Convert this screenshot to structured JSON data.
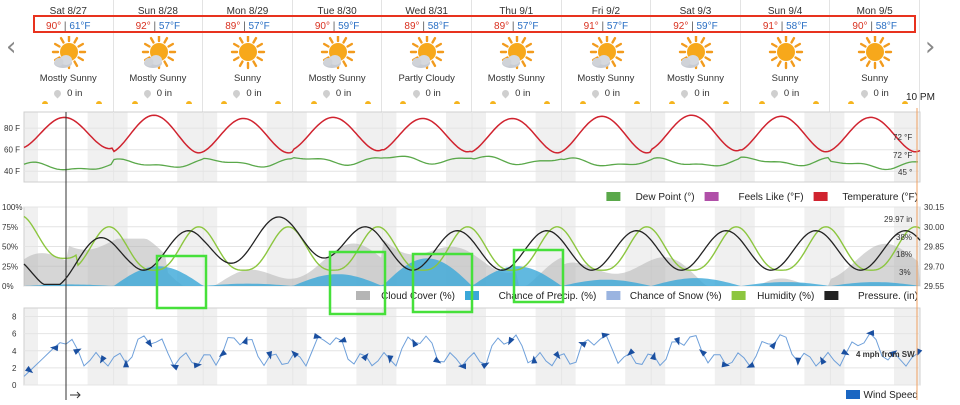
{
  "nav": {
    "prev_label": "‹",
    "next_label": "›"
  },
  "days": [
    {
      "date": "Sat 8/27",
      "hi": "90°",
      "lo": "61°F",
      "condition": "Mostly Sunny",
      "icon": "mostly-sunny-icon",
      "precip": "0 in"
    },
    {
      "date": "Sun 8/28",
      "hi": "92°",
      "lo": "57°F",
      "condition": "Mostly Sunny",
      "icon": "mostly-sunny-icon",
      "precip": "0 in"
    },
    {
      "date": "Mon 8/29",
      "hi": "89°",
      "lo": "57°F",
      "condition": "Sunny",
      "icon": "sunny-icon",
      "precip": "0 in"
    },
    {
      "date": "Tue 8/30",
      "hi": "90°",
      "lo": "59°F",
      "condition": "Mostly Sunny",
      "icon": "mostly-sunny-icon",
      "precip": "0 in"
    },
    {
      "date": "Wed 8/31",
      "hi": "89°",
      "lo": "58°F",
      "condition": "Partly Cloudy",
      "icon": "partly-cloudy-icon",
      "precip": "0 in"
    },
    {
      "date": "Thu 9/1",
      "hi": "89°",
      "lo": "57°F",
      "condition": "Mostly Sunny",
      "icon": "mostly-sunny-icon",
      "precip": "0 in"
    },
    {
      "date": "Fri 9/2",
      "hi": "91°",
      "lo": "57°F",
      "condition": "Mostly Sunny",
      "icon": "mostly-sunny-icon",
      "precip": "0 in"
    },
    {
      "date": "Sat 9/3",
      "hi": "92°",
      "lo": "59°F",
      "condition": "Mostly Sunny",
      "icon": "mostly-sunny-icon",
      "precip": "0 in"
    },
    {
      "date": "Sun 9/4",
      "hi": "91°",
      "lo": "58°F",
      "condition": "Sunny",
      "icon": "sunny-icon",
      "precip": "0 in"
    },
    {
      "date": "Mon 9/5",
      "hi": "90°",
      "lo": "58°F",
      "condition": "Sunny",
      "icon": "sunny-icon",
      "precip": "0 in"
    }
  ],
  "time_label": "10 PM",
  "colors": {
    "temperature": "#d0232f",
    "dew_point": "#5aa84a",
    "feels_like": "#b04fa8",
    "cloud": "#b5b5b5",
    "precip": "#3aa7d8",
    "snow": "#9ab4e0",
    "humidity": "#8cc63f",
    "pressure": "#222222",
    "wind": "#1a66c2",
    "highlight_red": "#e8321e",
    "highlight_green": "#46e03a"
  },
  "chart_data": [
    {
      "type": "line",
      "x": [
        "Sat 8/27",
        "Sun 8/28",
        "Mon 8/29",
        "Tue 8/30",
        "Wed 8/31",
        "Thu 9/1",
        "Fri 9/2",
        "Sat 9/3",
        "Sun 9/4",
        "Mon 9/5"
      ],
      "yticks": [
        "80 F",
        "60 F",
        "40 F"
      ],
      "ylim": [
        30,
        95
      ],
      "series": [
        {
          "name": "Temperature (°F)",
          "highs": [
            90,
            92,
            89,
            90,
            89,
            89,
            91,
            92,
            91,
            90
          ],
          "lows": [
            61,
            57,
            57,
            59,
            58,
            57,
            57,
            59,
            58,
            58
          ],
          "current_label": "72 °F"
        },
        {
          "name": "Feels Like (°F)",
          "current_label": "72 °F"
        },
        {
          "name": "Dew Point (°)",
          "values": [
            44,
            47,
            48,
            50,
            51,
            50,
            48,
            48,
            49,
            46
          ],
          "current_label": "45 °"
        }
      ],
      "legend": [
        "Dew Point (°)",
        "Feels Like (°F)",
        "Temperature (°F)"
      ],
      "legend_position": "bottom-right"
    },
    {
      "type": "line",
      "yticks_left": [
        "100%",
        "75%",
        "50%",
        "25%",
        "0%"
      ],
      "yticks_right": [
        "30.15",
        "30.00",
        "29.85",
        "29.70",
        "29.55"
      ],
      "series": [
        {
          "name": "Cloud Cover (%)",
          "current_label": "18%"
        },
        {
          "name": "Chance of Precip. (%)",
          "peaks": [
            2,
            25,
            3,
            15,
            35,
            25,
            8,
            10,
            5,
            5
          ],
          "current_label": "3%"
        },
        {
          "name": "Chance of Snow (%)"
        },
        {
          "name": "Humidity (%)",
          "current_label": "38%"
        },
        {
          "name": "Pressure. (in)",
          "current_label": "29.97 in"
        }
      ],
      "legend": [
        "Cloud Cover (%)",
        "Chance of Precip. (%)",
        "Chance of Snow (%)",
        "Humidity (%)",
        "Pressure. (in)"
      ],
      "legend_position": "bottom-right"
    },
    {
      "type": "line",
      "yticks": [
        "8",
        "6",
        "4",
        "2",
        "0"
      ],
      "ylim": [
        0,
        9
      ],
      "series": [
        {
          "name": "Wind Speed",
          "current_label": "4 mph from SW"
        }
      ],
      "legend": [
        "Wind Speed"
      ],
      "legend_position": "bottom-right"
    }
  ]
}
